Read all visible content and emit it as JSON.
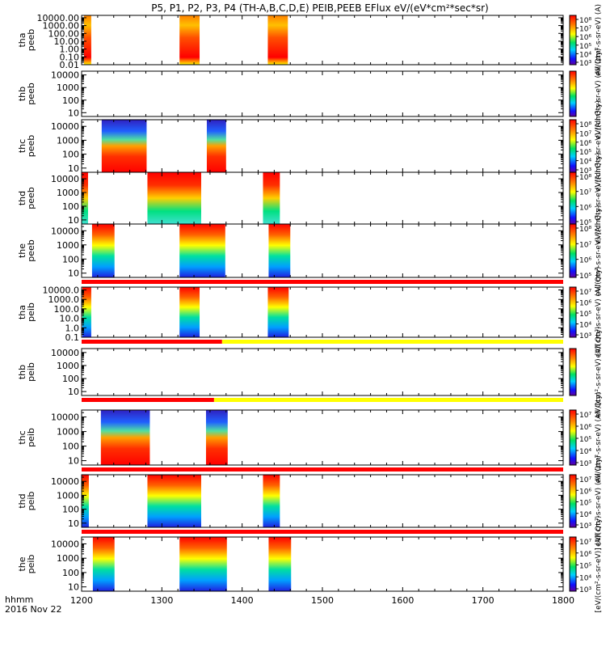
{
  "chart_data": {
    "type": "heatmap",
    "title": "P5, P1, P2, P3, P4 (TH-A,B,C,D,E) PEIB,PEEB EFlux eV/(eV*cm²*sec*sr)",
    "x_axis": {
      "ticks": [
        1200,
        1300,
        1400,
        1500,
        1600,
        1700,
        1800
      ],
      "tick_labels": [
        "1200",
        "1300",
        "1400",
        "1500",
        "1600",
        "1700",
        "1800"
      ],
      "xlim": [
        1200,
        1800
      ],
      "label_line1": "hhmm",
      "label_line2": "2016 Nov 22"
    },
    "panels": [
      {
        "label_line1": "tha",
        "label_line2": "peeb",
        "yscale": "log",
        "ylim": [
          0.01,
          20000
        ],
        "y_tick_values": [
          0.01,
          0.1,
          1,
          10,
          100,
          1000,
          10000
        ],
        "y_tick_labels": [
          "0.01",
          "0.10",
          "1.00",
          "10.00",
          "100.00",
          "1000.00",
          "10000.00"
        ],
        "colorbar_tick_labels": [
          "10³",
          "10⁴",
          "10⁵",
          "10⁶",
          "10⁷",
          "10⁸"
        ],
        "colorbar_label": "eV/(cm²-s-sr-eV) (A)",
        "data_intervals": [
          [
            1203,
            1212
          ],
          [
            1322,
            1347
          ],
          [
            1432,
            1457
          ]
        ],
        "flag_bar": null
      },
      {
        "label_line1": "thb",
        "label_line2": "peeb",
        "yscale": "log",
        "ylim": [
          5,
          20000
        ],
        "y_tick_values": [
          10,
          100,
          1000,
          10000
        ],
        "y_tick_labels": [
          "10",
          "100",
          "1000",
          "10000"
        ],
        "colorbar_tick_labels": [],
        "colorbar_label": "eV/(cm²-s-sr-eV) (All Qty)",
        "data_intervals": [],
        "flag_bar": null
      },
      {
        "label_line1": "thc",
        "label_line2": "peeb",
        "yscale": "log",
        "ylim": [
          5,
          30000
        ],
        "y_tick_values": [
          10,
          100,
          1000,
          10000
        ],
        "y_tick_labels": [
          "10",
          "100",
          "1000",
          "10000"
        ],
        "colorbar_tick_labels": [
          "10³",
          "10⁴",
          "10⁵",
          "10⁶",
          "10⁷",
          "10⁸"
        ],
        "colorbar_label": "eV/(cm²-s-sr-eV) (All Qty)",
        "data_intervals": [
          [
            1225,
            1281
          ],
          [
            1356,
            1380
          ]
        ],
        "flag_bar": null
      },
      {
        "label_line1": "thd",
        "label_line2": "peeb",
        "yscale": "log",
        "ylim": [
          5,
          30000
        ],
        "y_tick_values": [
          10,
          100,
          1000,
          10000
        ],
        "y_tick_labels": [
          "10",
          "100",
          "1000",
          "10000"
        ],
        "colorbar_tick_labels": [
          "10⁵",
          "10⁶",
          "10⁷",
          "10⁸"
        ],
        "colorbar_label": "eV/(cm²-s-sr-eV) (All Qty)",
        "data_intervals": [
          [
            1200,
            1208
          ],
          [
            1282,
            1349
          ],
          [
            1426,
            1447
          ]
        ],
        "flag_bar": null
      },
      {
        "label_line1": "the",
        "label_line2": "peeb",
        "yscale": "log",
        "ylim": [
          5,
          30000
        ],
        "y_tick_values": [
          10,
          100,
          1000,
          10000
        ],
        "y_tick_labels": [
          "10",
          "100",
          "1000",
          "10000"
        ],
        "colorbar_tick_labels": [
          "10⁵",
          "10⁶",
          "10⁷",
          "10⁸"
        ],
        "colorbar_label": "eV/(cm²-s-sr-eV) (All Qty)",
        "data_intervals": [
          [
            1213,
            1241
          ],
          [
            1322,
            1379
          ],
          [
            1433,
            1460
          ]
        ],
        "flag_bar": {
          "segments": [
            {
              "x": [
                1200,
                1800
              ],
              "color": "#ff0000"
            }
          ]
        }
      },
      {
        "label_line1": "tha",
        "label_line2": "peib",
        "yscale": "log",
        "ylim": [
          0.1,
          20000
        ],
        "y_tick_values": [
          0.1,
          1,
          10,
          100,
          1000,
          10000
        ],
        "y_tick_labels": [
          "0.1",
          "1.0",
          "10.0",
          "100.0",
          "1000.0",
          "10000.0"
        ],
        "colorbar_tick_labels": [
          "10³",
          "10⁴",
          "10⁵",
          "10⁶",
          "10⁷"
        ],
        "colorbar_label": "eV/(cm²-s-sr-eV) (All Qty)",
        "data_intervals": [
          [
            1201,
            1212
          ],
          [
            1322,
            1347
          ],
          [
            1432,
            1458
          ]
        ],
        "flag_bar": {
          "segments": [
            {
              "x": [
                1200,
                1375
              ],
              "color": "#ff0000"
            },
            {
              "x": [
                1375,
                1800
              ],
              "color": "#ffff00"
            }
          ]
        }
      },
      {
        "label_line1": "thb",
        "label_line2": "peib",
        "yscale": "log",
        "ylim": [
          5,
          20000
        ],
        "y_tick_values": [
          10,
          100,
          1000,
          10000
        ],
        "y_tick_labels": [
          "10",
          "100",
          "1000",
          "10000"
        ],
        "colorbar_tick_labels": [],
        "colorbar_label": "eV/(cm²-s-sr-eV) (All Qty)",
        "data_intervals": [],
        "flag_bar": {
          "segments": [
            {
              "x": [
                1200,
                1365
              ],
              "color": "#ff0000"
            },
            {
              "x": [
                1365,
                1800
              ],
              "color": "#ffff00"
            }
          ]
        }
      },
      {
        "label_line1": "thc",
        "label_line2": "peib",
        "yscale": "log",
        "ylim": [
          5,
          30000
        ],
        "y_tick_values": [
          10,
          100,
          1000,
          10000
        ],
        "y_tick_labels": [
          "10",
          "100",
          "1000",
          "10000"
        ],
        "colorbar_tick_labels": [
          "10³",
          "10⁴",
          "10⁵",
          "10⁶",
          "10⁷"
        ],
        "colorbar_label": "eV/(cm²-s-sr-eV) (All Qty)",
        "data_intervals": [
          [
            1224,
            1285
          ],
          [
            1355,
            1382
          ]
        ],
        "flag_bar": {
          "segments": [
            {
              "x": [
                1200,
                1800
              ],
              "color": "#ff0000"
            }
          ]
        }
      },
      {
        "label_line1": "thd",
        "label_line2": "peib",
        "yscale": "log",
        "ylim": [
          5,
          30000
        ],
        "y_tick_values": [
          10,
          100,
          1000,
          10000
        ],
        "y_tick_labels": [
          "10",
          "100",
          "1000",
          "10000"
        ],
        "colorbar_tick_labels": [
          "10³",
          "10⁴",
          "10⁵",
          "10⁶",
          "10⁷"
        ],
        "colorbar_label": "eV/(cm²-s-sr-eV) (All Qty)",
        "data_intervals": [
          [
            1200,
            1209
          ],
          [
            1282,
            1349
          ],
          [
            1426,
            1447
          ]
        ],
        "flag_bar": {
          "segments": [
            {
              "x": [
                1200,
                1800
              ],
              "color": "#ff0000"
            }
          ]
        }
      },
      {
        "label_line1": "the",
        "label_line2": "peib",
        "yscale": "log",
        "ylim": [
          5,
          30000
        ],
        "y_tick_values": [
          10,
          100,
          1000,
          10000
        ],
        "y_tick_labels": [
          "10",
          "100",
          "1000",
          "10000"
        ],
        "colorbar_tick_labels": [
          "10³",
          "10⁴",
          "10⁵",
          "10⁶",
          "10⁷"
        ],
        "colorbar_label": "[eV/(cm²-s-sr-eV)] (All Qty)",
        "data_intervals": [
          [
            1214,
            1241
          ],
          [
            1322,
            1381
          ],
          [
            1433,
            1461
          ]
        ],
        "flag_bar": null
      }
    ]
  }
}
